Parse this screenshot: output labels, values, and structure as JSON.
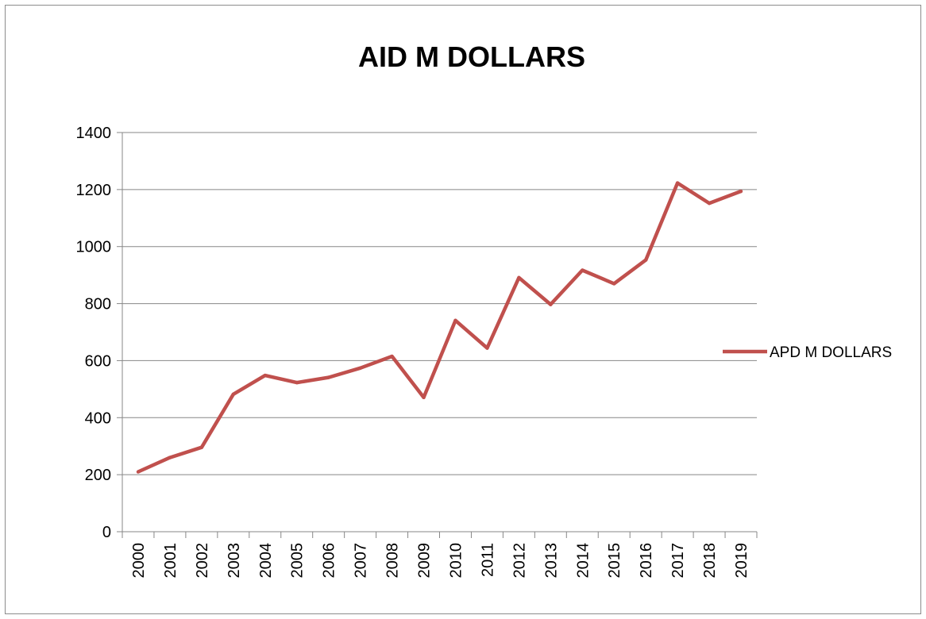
{
  "chart_data": {
    "type": "line",
    "title": "AID  M DOLLARS",
    "xlabel": "",
    "ylabel": "",
    "categories": [
      "2000",
      "2001",
      "2002",
      "2003",
      "2004",
      "2005",
      "2006",
      "2007",
      "2008",
      "2009",
      "2010",
      "2011",
      "2012",
      "2013",
      "2014",
      "2015",
      "2016",
      "2017",
      "2018",
      "2019"
    ],
    "series": [
      {
        "name": "APD  M DOLLARS",
        "color": "#c0504d",
        "values": [
          210,
          260,
          296,
          482,
          548,
          523,
          541,
          574,
          615,
          471,
          741,
          644,
          891,
          797,
          917,
          870,
          953,
          1223,
          1152,
          1194
        ]
      }
    ],
    "ylim": [
      0,
      1400
    ],
    "yticks": [
      0,
      200,
      400,
      600,
      800,
      1000,
      1200,
      1400
    ],
    "grid": true,
    "legend_position": "right"
  }
}
